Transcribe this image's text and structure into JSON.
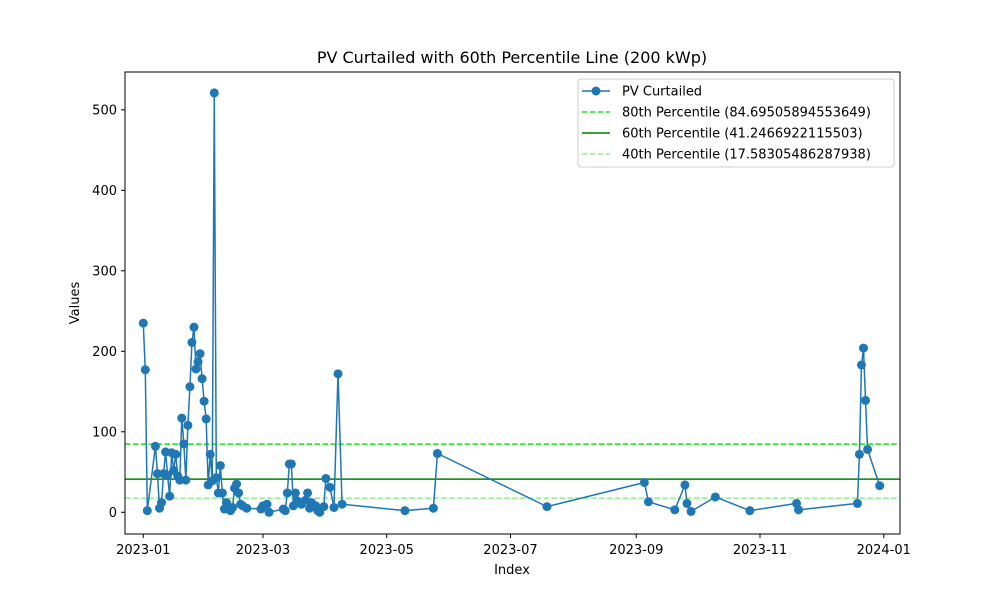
{
  "chart_data": {
    "type": "line",
    "title": "PV Curtailed with 60th Percentile Line (200 kWp)",
    "xlabel": "Index",
    "ylabel": "Values",
    "xlim": [
      "2022-12-23",
      "2024-01-09"
    ],
    "ylim": [
      -27,
      547
    ],
    "x_ticks": [
      "2023-01",
      "2023-03",
      "2023-05",
      "2023-07",
      "2023-09",
      "2023-11",
      "2024-01"
    ],
    "y_ticks": [
      0,
      100,
      200,
      300,
      400,
      500
    ],
    "grid": false,
    "legend_position": "upper right",
    "colors": {
      "series": "#1f77b4",
      "p80": "#22dd22",
      "p60": "#008000",
      "p40": "#90ee90"
    },
    "series": [
      {
        "name": "PV Curtailed",
        "x": [
          "2023-01-01",
          "2023-01-02",
          "2023-01-03",
          "2023-01-07",
          "2023-01-08",
          "2023-01-09",
          "2023-01-10",
          "2023-01-11",
          "2023-01-12",
          "2023-01-13",
          "2023-01-14",
          "2023-01-15",
          "2023-01-16",
          "2023-01-17",
          "2023-01-18",
          "2023-01-19",
          "2023-01-20",
          "2023-01-21",
          "2023-01-22",
          "2023-01-23",
          "2023-01-24",
          "2023-01-25",
          "2023-01-26",
          "2023-01-27",
          "2023-01-28",
          "2023-01-29",
          "2023-01-30",
          "2023-01-31",
          "2023-02-01",
          "2023-02-02",
          "2023-02-03",
          "2023-02-04",
          "2023-02-05",
          "2023-02-06",
          "2023-02-07",
          "2023-02-08",
          "2023-02-09",
          "2023-02-10",
          "2023-02-11",
          "2023-02-12",
          "2023-02-13",
          "2023-02-14",
          "2023-02-15",
          "2023-02-16",
          "2023-02-17",
          "2023-02-18",
          "2023-02-19",
          "2023-02-21",
          "2023-02-28",
          "2023-03-01",
          "2023-03-03",
          "2023-03-04",
          "2023-03-11",
          "2023-03-12",
          "2023-03-13",
          "2023-03-14",
          "2023-03-15",
          "2023-03-16",
          "2023-03-17",
          "2023-03-18",
          "2023-03-20",
          "2023-03-22",
          "2023-03-23",
          "2023-03-24",
          "2023-03-25",
          "2023-03-27",
          "2023-03-28",
          "2023-03-29",
          "2023-03-31",
          "2023-04-01",
          "2023-04-03",
          "2023-04-05",
          "2023-04-07",
          "2023-04-09",
          "2023-05-10",
          "2023-05-24",
          "2023-05-26",
          "2023-07-19",
          "2023-09-05",
          "2023-09-07",
          "2023-09-20",
          "2023-09-25",
          "2023-09-26",
          "2023-09-28",
          "2023-10-10",
          "2023-10-27",
          "2023-11-19",
          "2023-11-20",
          "2023-12-19",
          "2023-12-20",
          "2023-12-21",
          "2023-12-22",
          "2023-12-23",
          "2023-12-24",
          "2023-12-30"
        ],
        "values": [
          235,
          177,
          2,
          82,
          48,
          5,
          12,
          48,
          75,
          46,
          20,
          74,
          52,
          72,
          45,
          40,
          117,
          85,
          40,
          108,
          156,
          211,
          230,
          178,
          187,
          197,
          166,
          138,
          116,
          34,
          72,
          39,
          521,
          43,
          24,
          58,
          24,
          4,
          12,
          5,
          2,
          6,
          30,
          35,
          24,
          10,
          8,
          5,
          4,
          8,
          10,
          0,
          4,
          2,
          24,
          60,
          60,
          8,
          24,
          14,
          10,
          15,
          24,
          5,
          12,
          8,
          2,
          0,
          7,
          42,
          31,
          6,
          172,
          10,
          2,
          5,
          73,
          7,
          37,
          13,
          3,
          34,
          11,
          1,
          19,
          2,
          11,
          3,
          11,
          72,
          183,
          204,
          139,
          78,
          33
        ]
      }
    ],
    "hlines": [
      {
        "name": "80th Percentile (84.69505894553649)",
        "value": 84.69505894553649,
        "style": "dashed"
      },
      {
        "name": "60th Percentile (41.2466922115503)",
        "value": 41.2466922115503,
        "style": "solid"
      },
      {
        "name": "40th Percentile (17.58305486287938)",
        "value": 17.58305486287938,
        "style": "dashed"
      }
    ]
  }
}
